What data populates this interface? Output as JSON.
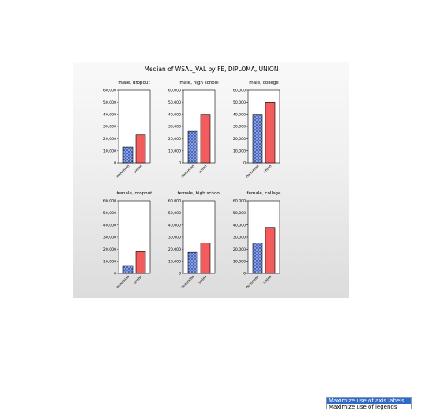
{
  "chart_data": {
    "type": "bar",
    "title": "Median of WSAL_VAL by FE, DIPLOMA, UNION",
    "categories": [
      "nonunion",
      "union"
    ],
    "ylim": [
      0,
      60000
    ],
    "yticks": [
      "0",
      "10,000",
      "20,000",
      "30,000",
      "40,000",
      "50,000",
      "60,000"
    ],
    "colors": {
      "nonunion": "#7a9be0",
      "union": "#f25c5c"
    },
    "panels": [
      {
        "title": "male, dropout",
        "values": [
          13000,
          23000
        ]
      },
      {
        "title": "male, high school",
        "values": [
          26000,
          40000
        ]
      },
      {
        "title": "male, college",
        "values": [
          40000,
          50000
        ]
      },
      {
        "title": "female, dropout",
        "values": [
          6500,
          18000
        ]
      },
      {
        "title": "female, high school",
        "values": [
          17500,
          25000
        ]
      },
      {
        "title": "female, college",
        "values": [
          25000,
          38000
        ]
      }
    ]
  },
  "legend_options": {
    "selected": "Maximize use of axis labels",
    "other": "Maximize use of legends"
  }
}
